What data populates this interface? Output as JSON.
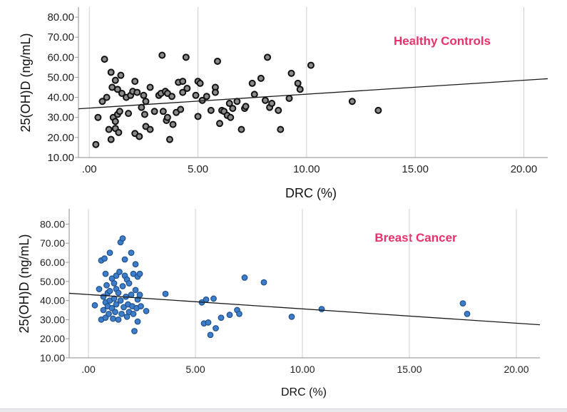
{
  "chart_data": [
    {
      "type": "scatter",
      "title": "Healthy Controls",
      "xlabel": "DRC (%)",
      "ylabel": "25(OH)D (ng/mL)",
      "xlim": [
        -0.5,
        21.1
      ],
      "ylim": [
        10,
        85
      ],
      "x_ticks": [
        ".00",
        "5.00",
        "10.00",
        "15.00",
        "20.00"
      ],
      "y_ticks": [
        "10.00",
        "20.00",
        "30.00",
        "40.00",
        "50.00",
        "60.00",
        "70.00",
        "80.00"
      ],
      "grid": "vertical",
      "marker_fill": "#8a8a8a",
      "marker_edge": "#111111",
      "title_color": "#e8316a",
      "fit_line": {
        "x": [
          -0.5,
          21.1
        ],
        "y": [
          34.3,
          49.3
        ]
      },
      "points": [
        [
          0.3,
          16.5
        ],
        [
          0.4,
          30.0
        ],
        [
          0.6,
          38.0
        ],
        [
          0.7,
          59.0
        ],
        [
          0.8,
          40.0
        ],
        [
          0.9,
          24.0
        ],
        [
          1.0,
          52.5
        ],
        [
          1.0,
          19.0
        ],
        [
          1.05,
          45.0
        ],
        [
          1.1,
          30.0
        ],
        [
          1.2,
          28.0
        ],
        [
          1.2,
          48.5
        ],
        [
          1.2,
          24.5
        ],
        [
          1.3,
          31.5
        ],
        [
          1.3,
          44.0
        ],
        [
          1.35,
          22.5
        ],
        [
          1.4,
          33.0
        ],
        [
          1.45,
          51.0
        ],
        [
          1.5,
          42.0
        ],
        [
          1.7,
          40.0
        ],
        [
          1.8,
          32.0
        ],
        [
          1.9,
          41.0
        ],
        [
          2.0,
          43.0
        ],
        [
          2.1,
          22.0
        ],
        [
          2.1,
          48.0
        ],
        [
          2.2,
          42.5
        ],
        [
          2.3,
          20.5
        ],
        [
          2.4,
          35.0
        ],
        [
          2.5,
          41.0
        ],
        [
          2.55,
          31.5
        ],
        [
          2.6,
          38.0
        ],
        [
          2.6,
          25.5
        ],
        [
          2.8,
          45.0
        ],
        [
          2.8,
          24.0
        ],
        [
          3.0,
          33.0
        ],
        [
          3.2,
          41.0
        ],
        [
          3.3,
          42.0
        ],
        [
          3.35,
          61.0
        ],
        [
          3.4,
          33.0
        ],
        [
          3.5,
          43.0
        ],
        [
          3.55,
          28.5
        ],
        [
          3.6,
          42.0
        ],
        [
          3.6,
          30.0
        ],
        [
          3.7,
          19.0
        ],
        [
          3.8,
          40.5
        ],
        [
          3.85,
          26.5
        ],
        [
          4.0,
          32.5
        ],
        [
          4.1,
          47.5
        ],
        [
          4.2,
          34.0
        ],
        [
          4.3,
          42.5
        ],
        [
          4.3,
          48.0
        ],
        [
          4.45,
          60.0
        ],
        [
          4.5,
          44.5
        ],
        [
          4.9,
          41.0
        ],
        [
          5.0,
          48.0
        ],
        [
          5.0,
          30.5
        ],
        [
          5.1,
          47.0
        ],
        [
          5.2,
          38.5
        ],
        [
          5.4,
          40.5
        ],
        [
          5.6,
          33.5
        ],
        [
          5.8,
          45.0
        ],
        [
          5.8,
          42.5
        ],
        [
          5.9,
          58.0
        ],
        [
          6.0,
          27.0
        ],
        [
          6.1,
          33.5
        ],
        [
          6.2,
          33.0
        ],
        [
          6.35,
          31.0
        ],
        [
          6.45,
          37.0
        ],
        [
          6.5,
          30.0
        ],
        [
          6.6,
          34.5
        ],
        [
          6.8,
          38.0
        ],
        [
          7.0,
          24.0
        ],
        [
          7.15,
          34.5
        ],
        [
          7.2,
          35.5
        ],
        [
          7.5,
          47.0
        ],
        [
          7.6,
          41.5
        ],
        [
          7.9,
          49.5
        ],
        [
          8.1,
          38.5
        ],
        [
          8.2,
          60.0
        ],
        [
          8.3,
          35.0
        ],
        [
          8.4,
          37.0
        ],
        [
          8.7,
          33.5
        ],
        [
          8.8,
          24.0
        ],
        [
          9.2,
          39.5
        ],
        [
          9.3,
          52.0
        ],
        [
          9.6,
          47.0
        ],
        [
          9.7,
          44.0
        ],
        [
          10.2,
          56.0
        ],
        [
          12.1,
          38.0
        ],
        [
          13.3,
          33.5
        ]
      ]
    },
    {
      "type": "scatter",
      "title": "Breast Cancer",
      "xlabel": "DRC (%)",
      "ylabel": "25(OH)D (ng/mL)",
      "xlim": [
        -0.9,
        21.1
      ],
      "ylim": [
        10,
        88
      ],
      "x_ticks": [
        ".00",
        "5.00",
        "10.00",
        "15.00",
        "20.00"
      ],
      "y_ticks": [
        "10.00",
        "20.00",
        "30.00",
        "40.00",
        "50.00",
        "60.00",
        "70.00",
        "80.00"
      ],
      "grid": "vertical",
      "marker_fill": "#3d7dc9",
      "marker_edge": "#1f4f8a",
      "title_color": "#e8316a",
      "fit_line": {
        "x": [
          -0.9,
          21.1
        ],
        "y": [
          43.8,
          27.3
        ]
      },
      "points": [
        [
          0.3,
          37.5
        ],
        [
          0.5,
          46.0
        ],
        [
          0.6,
          61.0
        ],
        [
          0.6,
          30.0
        ],
        [
          0.7,
          42.0
        ],
        [
          0.7,
          35.0
        ],
        [
          0.75,
          62.0
        ],
        [
          0.8,
          54.0
        ],
        [
          0.8,
          39.0
        ],
        [
          0.8,
          31.0
        ],
        [
          0.85,
          48.0
        ],
        [
          0.9,
          44.0
        ],
        [
          0.9,
          37.0
        ],
        [
          0.95,
          33.0
        ],
        [
          1.0,
          65.0
        ],
        [
          1.0,
          45.0
        ],
        [
          1.0,
          40.0
        ],
        [
          1.1,
          51.5
        ],
        [
          1.1,
          36.0
        ],
        [
          1.15,
          30.5
        ],
        [
          1.2,
          49.0
        ],
        [
          1.2,
          41.0
        ],
        [
          1.25,
          34.0
        ],
        [
          1.3,
          53.0
        ],
        [
          1.3,
          46.0
        ],
        [
          1.3,
          38.0
        ],
        [
          1.4,
          44.0
        ],
        [
          1.4,
          30.0
        ],
        [
          1.45,
          55.0
        ],
        [
          1.5,
          70.5
        ],
        [
          1.5,
          40.0
        ],
        [
          1.55,
          33.0
        ],
        [
          1.6,
          72.5
        ],
        [
          1.6,
          47.5
        ],
        [
          1.65,
          36.5
        ],
        [
          1.7,
          61.5
        ],
        [
          1.7,
          53.0
        ],
        [
          1.75,
          42.0
        ],
        [
          1.8,
          51.0
        ],
        [
          1.8,
          31.5
        ],
        [
          1.85,
          38.0
        ],
        [
          1.9,
          49.0
        ],
        [
          1.9,
          34.0
        ],
        [
          2.0,
          65.0
        ],
        [
          2.0,
          43.0
        ],
        [
          2.05,
          37.0
        ],
        [
          2.1,
          54.0
        ],
        [
          2.1,
          33.0
        ],
        [
          2.15,
          24.0
        ],
        [
          2.2,
          59.0
        ],
        [
          2.2,
          45.5
        ],
        [
          2.25,
          36.0
        ],
        [
          2.3,
          52.5
        ],
        [
          2.3,
          40.5
        ],
        [
          2.3,
          29.0
        ],
        [
          2.4,
          54.0
        ],
        [
          2.4,
          43.0
        ],
        [
          2.45,
          37.0
        ],
        [
          2.7,
          34.5
        ],
        [
          3.6,
          43.5
        ],
        [
          5.3,
          39.0
        ],
        [
          5.4,
          28.0
        ],
        [
          5.5,
          40.5
        ],
        [
          5.6,
          28.5
        ],
        [
          5.7,
          22.0
        ],
        [
          5.85,
          41.0
        ],
        [
          5.95,
          25.5
        ],
        [
          6.2,
          31.0
        ],
        [
          6.6,
          32.5
        ],
        [
          6.95,
          35.0
        ],
        [
          7.05,
          33.0
        ],
        [
          7.3,
          52.0
        ],
        [
          8.2,
          49.5
        ],
        [
          9.5,
          31.5
        ],
        [
          10.9,
          35.5
        ],
        [
          17.5,
          38.5
        ],
        [
          17.7,
          33.0
        ]
      ]
    }
  ]
}
